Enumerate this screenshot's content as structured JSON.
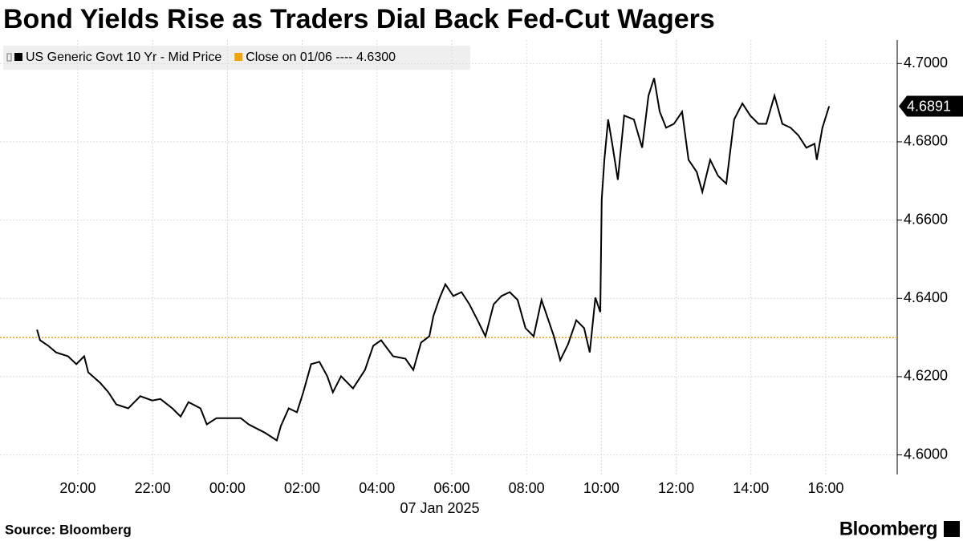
{
  "chart_data": {
    "type": "line",
    "title": "Bond Yields Rise as Traders Dial Back Fed-Cut Wagers",
    "source": "Source: Bloomberg",
    "brand": "Bloomberg",
    "x_sublabel": "07 Jan 2025",
    "x": [
      -1.09,
      -1.01,
      -0.79,
      -0.58,
      -0.26,
      -0.04,
      0.17,
      0.28,
      0.6,
      0.82,
      1.03,
      1.35,
      1.67,
      1.99,
      2.21,
      2.53,
      2.75,
      2.96,
      3.28,
      3.45,
      3.71,
      4.36,
      4.57,
      5.0,
      5.32,
      5.43,
      5.64,
      5.86,
      6.03,
      6.24,
      6.46,
      6.67,
      6.82,
      7.04,
      7.36,
      7.68,
      7.9,
      8.11,
      8.43,
      8.76,
      8.97,
      9.18,
      9.4,
      9.51,
      9.68,
      9.83,
      10.04,
      10.26,
      10.47,
      10.69,
      10.9,
      11.12,
      11.33,
      11.55,
      11.76,
      11.97,
      12.19,
      12.4,
      12.73,
      12.9,
      13.11,
      13.33,
      13.54,
      13.69,
      13.84,
      13.97,
      14.01,
      14.08,
      14.18,
      14.29,
      14.44,
      14.61,
      14.87,
      15.09,
      15.26,
      15.41,
      15.56,
      15.73,
      15.94,
      16.16,
      16.33,
      16.55,
      16.7,
      16.91,
      17.12,
      17.34,
      17.55,
      17.77,
      17.98,
      18.2,
      18.41,
      18.63,
      18.84,
      19.06,
      19.27,
      19.48,
      19.7,
      19.76,
      19.91,
      20.09
    ],
    "series": [
      {
        "name": "US Generic Govt 10 Yr - Mid Price",
        "color": "#000000",
        "values": [
          4.632,
          4.6293,
          4.6279,
          4.6262,
          4.6252,
          4.6232,
          4.6252,
          4.6211,
          4.6184,
          4.616,
          4.6129,
          4.6119,
          4.615,
          4.6139,
          4.6143,
          4.6119,
          4.6098,
          4.6135,
          4.6119,
          4.6078,
          4.6094,
          4.6094,
          4.6078,
          4.6057,
          4.6037,
          4.6074,
          4.6119,
          4.6109,
          4.616,
          4.6232,
          4.6238,
          4.6201,
          4.616,
          4.6201,
          4.617,
          4.6217,
          4.6279,
          4.6293,
          4.6252,
          4.6246,
          4.6217,
          4.6287,
          4.6303,
          4.6355,
          4.6402,
          4.6436,
          4.6406,
          4.6416,
          4.6385,
          4.6344,
          4.6303,
          4.6385,
          4.6406,
          4.6416,
          4.6396,
          4.6324,
          4.6303,
          4.6396,
          4.6303,
          4.6242,
          4.6283,
          4.6344,
          4.6324,
          4.6262,
          4.6402,
          4.6365,
          4.6652,
          4.6754,
          4.6857,
          4.6795,
          4.6703,
          4.6867,
          4.6857,
          4.6785,
          4.6918,
          4.6963,
          4.6877,
          4.6836,
          4.6846,
          4.6877,
          4.6754,
          4.6723,
          4.6672,
          4.6754,
          4.6713,
          4.6693,
          4.6857,
          4.6898,
          4.6867,
          4.6846,
          4.6846,
          4.6918,
          4.6846,
          4.6836,
          4.6816,
          4.6785,
          4.6795,
          4.6754,
          4.6836,
          4.6891
        ]
      }
    ],
    "reference": {
      "name": "Close on 01/06 ----",
      "value": 4.63,
      "label": "4.6300",
      "color": "#f0a30a"
    },
    "xlim": [
      -2.08,
      21.91
    ],
    "ylim": [
      4.595,
      4.706
    ],
    "xticks": [
      {
        "value": 0,
        "label": "20:00"
      },
      {
        "value": 2,
        "label": "22:00"
      },
      {
        "value": 4,
        "label": "00:00"
      },
      {
        "value": 6,
        "label": "02:00"
      },
      {
        "value": 8,
        "label": "04:00"
      },
      {
        "value": 10,
        "label": "06:00"
      },
      {
        "value": 12,
        "label": "08:00"
      },
      {
        "value": 14,
        "label": "10:00"
      },
      {
        "value": 16,
        "label": "12:00"
      },
      {
        "value": 18,
        "label": "14:00"
      },
      {
        "value": 20,
        "label": "16:00"
      }
    ],
    "yticks": [
      {
        "value": 4.6,
        "label": "4.6000"
      },
      {
        "value": 4.62,
        "label": "4.6200"
      },
      {
        "value": 4.64,
        "label": "4.6400"
      },
      {
        "value": 4.66,
        "label": "4.6600"
      },
      {
        "value": 4.68,
        "label": "4.6800"
      },
      {
        "value": 4.7,
        "label": "4.7000"
      }
    ],
    "grid": true,
    "y_axis_side": "right"
  }
}
